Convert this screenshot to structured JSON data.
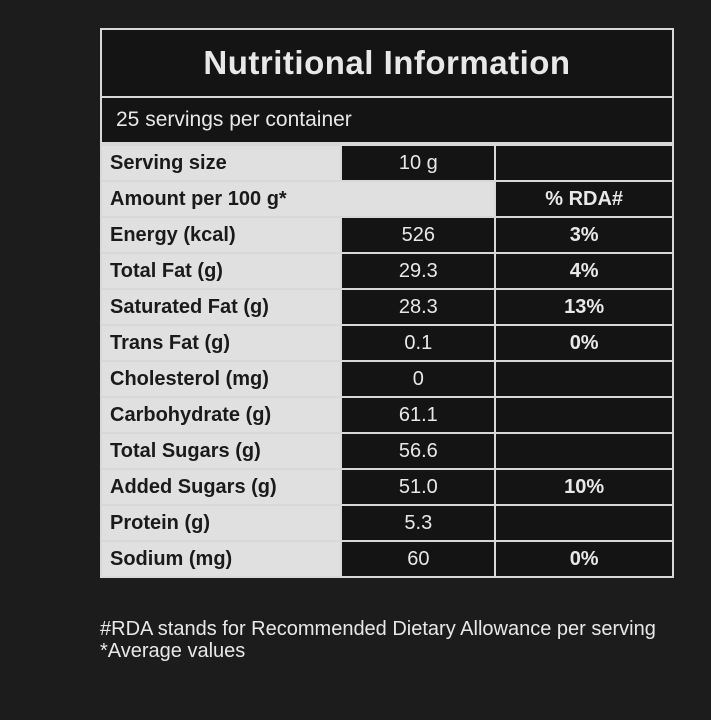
{
  "title": "Nutritional Information",
  "servings_per_container": "25 servings per container",
  "serving_size": {
    "label": "Serving size",
    "value": "10 g"
  },
  "header": {
    "amount_label": "Amount per 100 g*",
    "rda_label": "% RDA#"
  },
  "rows": [
    {
      "label": "Energy (kcal)",
      "value": "526",
      "rda": "3%"
    },
    {
      "label": "Total Fat (g)",
      "value": "29.3",
      "rda": "4%"
    },
    {
      "label": "Saturated Fat (g)",
      "value": "28.3",
      "rda": "13%"
    },
    {
      "label": "Trans Fat (g)",
      "value": "0.1",
      "rda": "0%"
    },
    {
      "label": "Cholesterol (mg)",
      "value": "0",
      "rda": ""
    },
    {
      "label": "Carbohydrate (g)",
      "value": "61.1",
      "rda": ""
    },
    {
      "label": "Total Sugars (g)",
      "value": "56.6",
      "rda": ""
    },
    {
      "label": "Added Sugars (g)",
      "value": "51.0",
      "rda": "10%"
    },
    {
      "label": "Protein (g)",
      "value": "5.3",
      "rda": ""
    },
    {
      "label": "Sodium (mg)",
      "value": "60",
      "rda": "0%"
    }
  ],
  "footnotes": {
    "rda_note": "#RDA stands for Recommended Dietary Allowance per serving",
    "avg_note": "*Average values"
  },
  "colors": {
    "background": "#1c1c1c",
    "label_fill": "#e0e0e0",
    "border": "#d8d8d8"
  }
}
